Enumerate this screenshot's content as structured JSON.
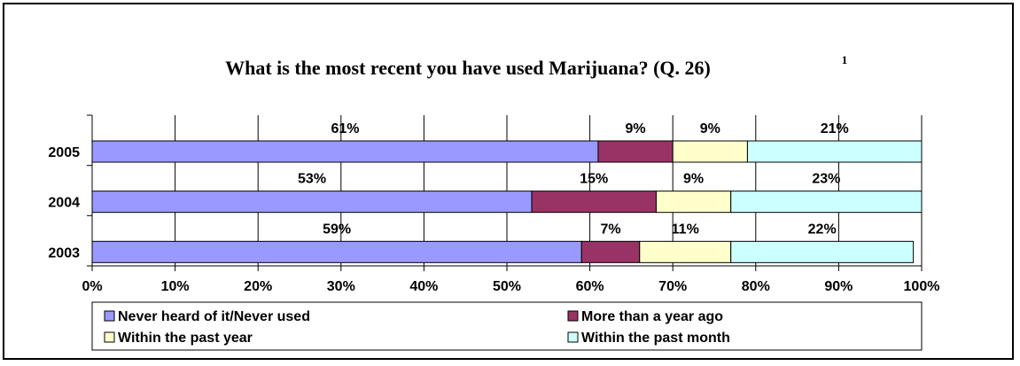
{
  "chart_data": {
    "type": "bar",
    "orientation": "horizontal",
    "stacked": "percent",
    "title": "What is the most recent you have used Marijuana? (Q. 26)",
    "title_superscript": "1",
    "categories": [
      "2005",
      "2004",
      "2003"
    ],
    "series": [
      {
        "name": "Never heard of it/Never used",
        "values": [
          61,
          53,
          59
        ],
        "labels": [
          "61%",
          "53%",
          "59%"
        ],
        "color": "#9999FF"
      },
      {
        "name": "More than a year ago",
        "values": [
          9,
          15,
          7
        ],
        "labels": [
          "9%",
          "15%",
          "7%"
        ],
        "color": "#993366"
      },
      {
        "name": "Within the past year",
        "values": [
          9,
          9,
          11
        ],
        "labels": [
          "9%",
          "9%",
          "11%"
        ],
        "color": "#FFFFCC"
      },
      {
        "name": "Within the past month",
        "values": [
          21,
          23,
          22
        ],
        "labels": [
          "21%",
          "23%",
          "22%"
        ],
        "color": "#CCFFFF"
      }
    ],
    "xlim": [
      0,
      100
    ],
    "x_ticks": [
      "0%",
      "10%",
      "20%",
      "30%",
      "40%",
      "50%",
      "60%",
      "70%",
      "80%",
      "90%",
      "100%"
    ],
    "grid": "vertical",
    "legend_position": "bottom"
  }
}
